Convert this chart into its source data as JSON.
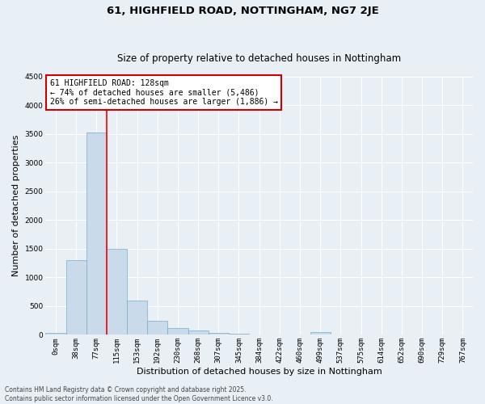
{
  "title_line1": "61, HIGHFIELD ROAD, NOTTINGHAM, NG7 2JE",
  "title_line2": "Size of property relative to detached houses in Nottingham",
  "xlabel": "Distribution of detached houses by size in Nottingham",
  "ylabel": "Number of detached properties",
  "bar_color": "#c9daea",
  "bar_edge_color": "#7aaac8",
  "categories": [
    "0sqm",
    "38sqm",
    "77sqm",
    "115sqm",
    "153sqm",
    "192sqm",
    "230sqm",
    "268sqm",
    "307sqm",
    "345sqm",
    "384sqm",
    "422sqm",
    "460sqm",
    "499sqm",
    "537sqm",
    "575sqm",
    "614sqm",
    "652sqm",
    "690sqm",
    "729sqm",
    "767sqm"
  ],
  "values": [
    30,
    1300,
    3530,
    1500,
    600,
    250,
    120,
    75,
    35,
    15,
    5,
    0,
    0,
    45,
    0,
    0,
    0,
    0,
    0,
    0,
    0
  ],
  "ylim": [
    0,
    4500
  ],
  "yticks": [
    0,
    500,
    1000,
    1500,
    2000,
    2500,
    3000,
    3500,
    4000,
    4500
  ],
  "red_line_x": 2.5,
  "annotation_text": "61 HIGHFIELD ROAD: 128sqm\n← 74% of detached houses are smaller (5,486)\n26% of semi-detached houses are larger (1,886) →",
  "annotation_box_color": "#ffffff",
  "annotation_box_edge": "#cc0000",
  "footer_text": "Contains HM Land Registry data © Crown copyright and database right 2025.\nContains public sector information licensed under the Open Government Licence v3.0.",
  "bg_color": "#e8eff5",
  "grid_color": "#ffffff",
  "title_fontsize": 9.5,
  "subtitle_fontsize": 8.5,
  "axis_label_fontsize": 8,
  "tick_fontsize": 6.5,
  "annotation_fontsize": 7,
  "footer_fontsize": 5.5
}
